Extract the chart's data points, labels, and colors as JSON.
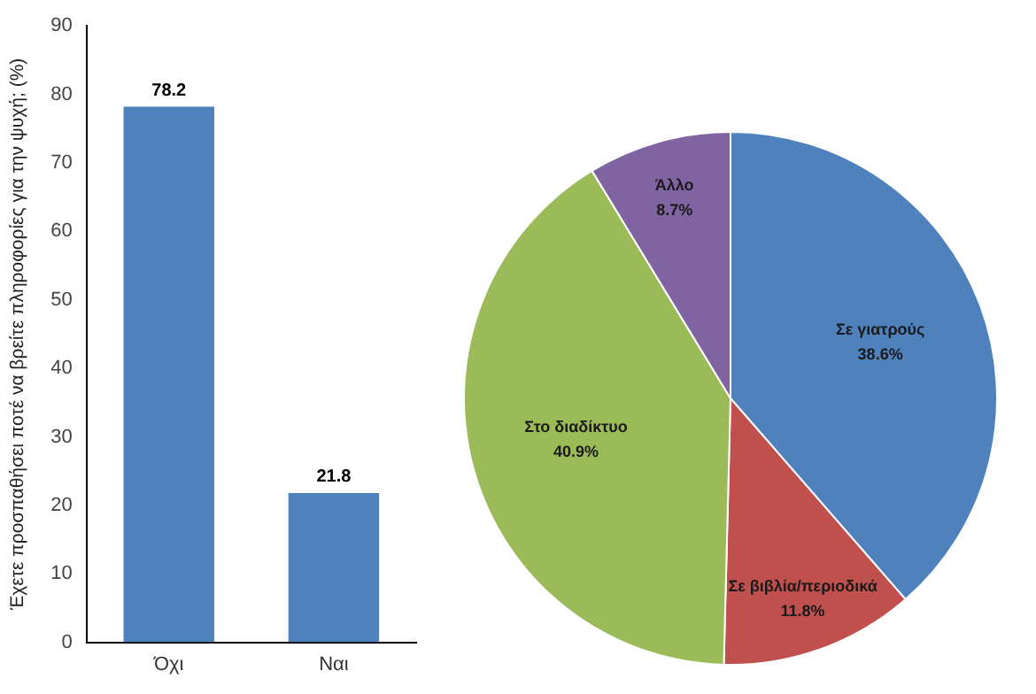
{
  "chart_data": [
    {
      "type": "bar",
      "ylabel": "Έχετε προσπαθήσει ποτέ να βρείτε πληροφορίες για την ψυχή; (%)",
      "categories": [
        "Όχι",
        "Ναι"
      ],
      "values": [
        78.2,
        21.8
      ],
      "color": "#4f81bd",
      "ylim": [
        0,
        90
      ],
      "yticks": [
        0,
        10,
        20,
        30,
        40,
        50,
        60,
        70,
        80,
        90
      ],
      "grid": false,
      "legend": false,
      "data_labels": true
    },
    {
      "type": "pie",
      "categories": [
        "Σε γιατρούς",
        "Σε βιβλία/περιοδικά",
        "Στο διαδίκτυο",
        "Άλλο"
      ],
      "values": [
        38.6,
        11.8,
        40.9,
        8.7
      ],
      "colors": [
        "#4f81bd",
        "#c0504d",
        "#9bbb59",
        "#8064a2"
      ],
      "value_labels": [
        "38.6%",
        "11.8%",
        "40.9%",
        "8.7%"
      ],
      "legend": false
    }
  ]
}
